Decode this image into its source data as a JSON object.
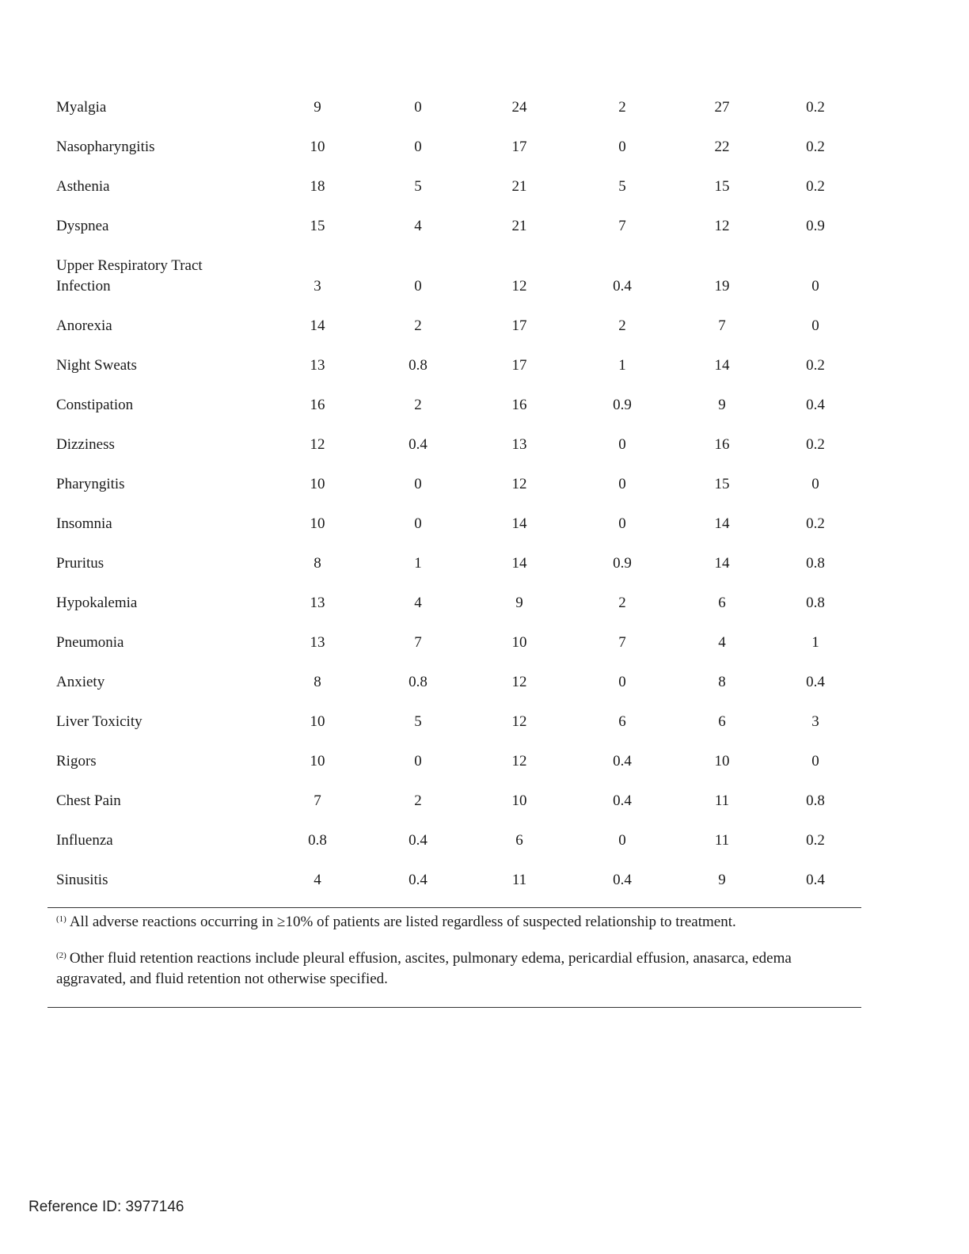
{
  "table": {
    "rows": [
      {
        "name": "Myalgia",
        "values": [
          "9",
          "0",
          "24",
          "2",
          "27",
          "0.2"
        ]
      },
      {
        "name": "Nasopharyngitis",
        "values": [
          "10",
          "0",
          "17",
          "0",
          "22",
          "0.2"
        ]
      },
      {
        "name": "Asthenia",
        "values": [
          "18",
          "5",
          "21",
          "5",
          "15",
          "0.2"
        ]
      },
      {
        "name": "Dyspnea",
        "values": [
          "15",
          "4",
          "21",
          "7",
          "12",
          "0.9"
        ]
      },
      {
        "name": "Upper Respiratory Tract Infection",
        "values": [
          "3",
          "0",
          "12",
          "0.4",
          "19",
          "0"
        ]
      },
      {
        "name": "Anorexia",
        "values": [
          "14",
          "2",
          "17",
          "2",
          "7",
          "0"
        ]
      },
      {
        "name": "Night Sweats",
        "values": [
          "13",
          "0.8",
          "17",
          "1",
          "14",
          "0.2"
        ]
      },
      {
        "name": "Constipation",
        "values": [
          "16",
          "2",
          "16",
          "0.9",
          "9",
          "0.4"
        ]
      },
      {
        "name": "Dizziness",
        "values": [
          "12",
          "0.4",
          "13",
          "0",
          "16",
          "0.2"
        ]
      },
      {
        "name": "Pharyngitis",
        "values": [
          "10",
          "0",
          "12",
          "0",
          "15",
          "0"
        ]
      },
      {
        "name": "Insomnia",
        "values": [
          "10",
          "0",
          "14",
          "0",
          "14",
          "0.2"
        ]
      },
      {
        "name": "Pruritus",
        "values": [
          "8",
          "1",
          "14",
          "0.9",
          "14",
          "0.8"
        ]
      },
      {
        "name": "Hypokalemia",
        "values": [
          "13",
          "4",
          "9",
          "2",
          "6",
          "0.8"
        ]
      },
      {
        "name": "Pneumonia",
        "values": [
          "13",
          "7",
          "10",
          "7",
          "4",
          "1"
        ]
      },
      {
        "name": "Anxiety",
        "values": [
          "8",
          "0.8",
          "12",
          "0",
          "8",
          "0.4"
        ]
      },
      {
        "name": "Liver Toxicity",
        "values": [
          "10",
          "5",
          "12",
          "6",
          "6",
          "3"
        ]
      },
      {
        "name": "Rigors",
        "values": [
          "10",
          "0",
          "12",
          "0.4",
          "10",
          "0"
        ]
      },
      {
        "name": "Chest Pain",
        "values": [
          "7",
          "2",
          "10",
          "0.4",
          "11",
          "0.8"
        ]
      },
      {
        "name": "Influenza",
        "values": [
          "0.8",
          "0.4",
          "6",
          "0",
          "11",
          "0.2"
        ]
      },
      {
        "name": "Sinusitis",
        "values": [
          "4",
          "0.4",
          "11",
          "0.4",
          "9",
          "0.4"
        ]
      }
    ]
  },
  "footnotes": [
    {
      "marker": "(1)",
      "text": "All adverse reactions occurring in ≥10% of patients are listed regardless of suspected relationship to treatment."
    },
    {
      "marker": "(2)",
      "text": "Other fluid retention reactions include pleural effusion, ascites, pulmonary edema, pericardial effusion, anasarca, edema aggravated, and fluid retention not otherwise specified."
    }
  ],
  "footer": {
    "reference_id": "Reference ID: 3977146"
  }
}
